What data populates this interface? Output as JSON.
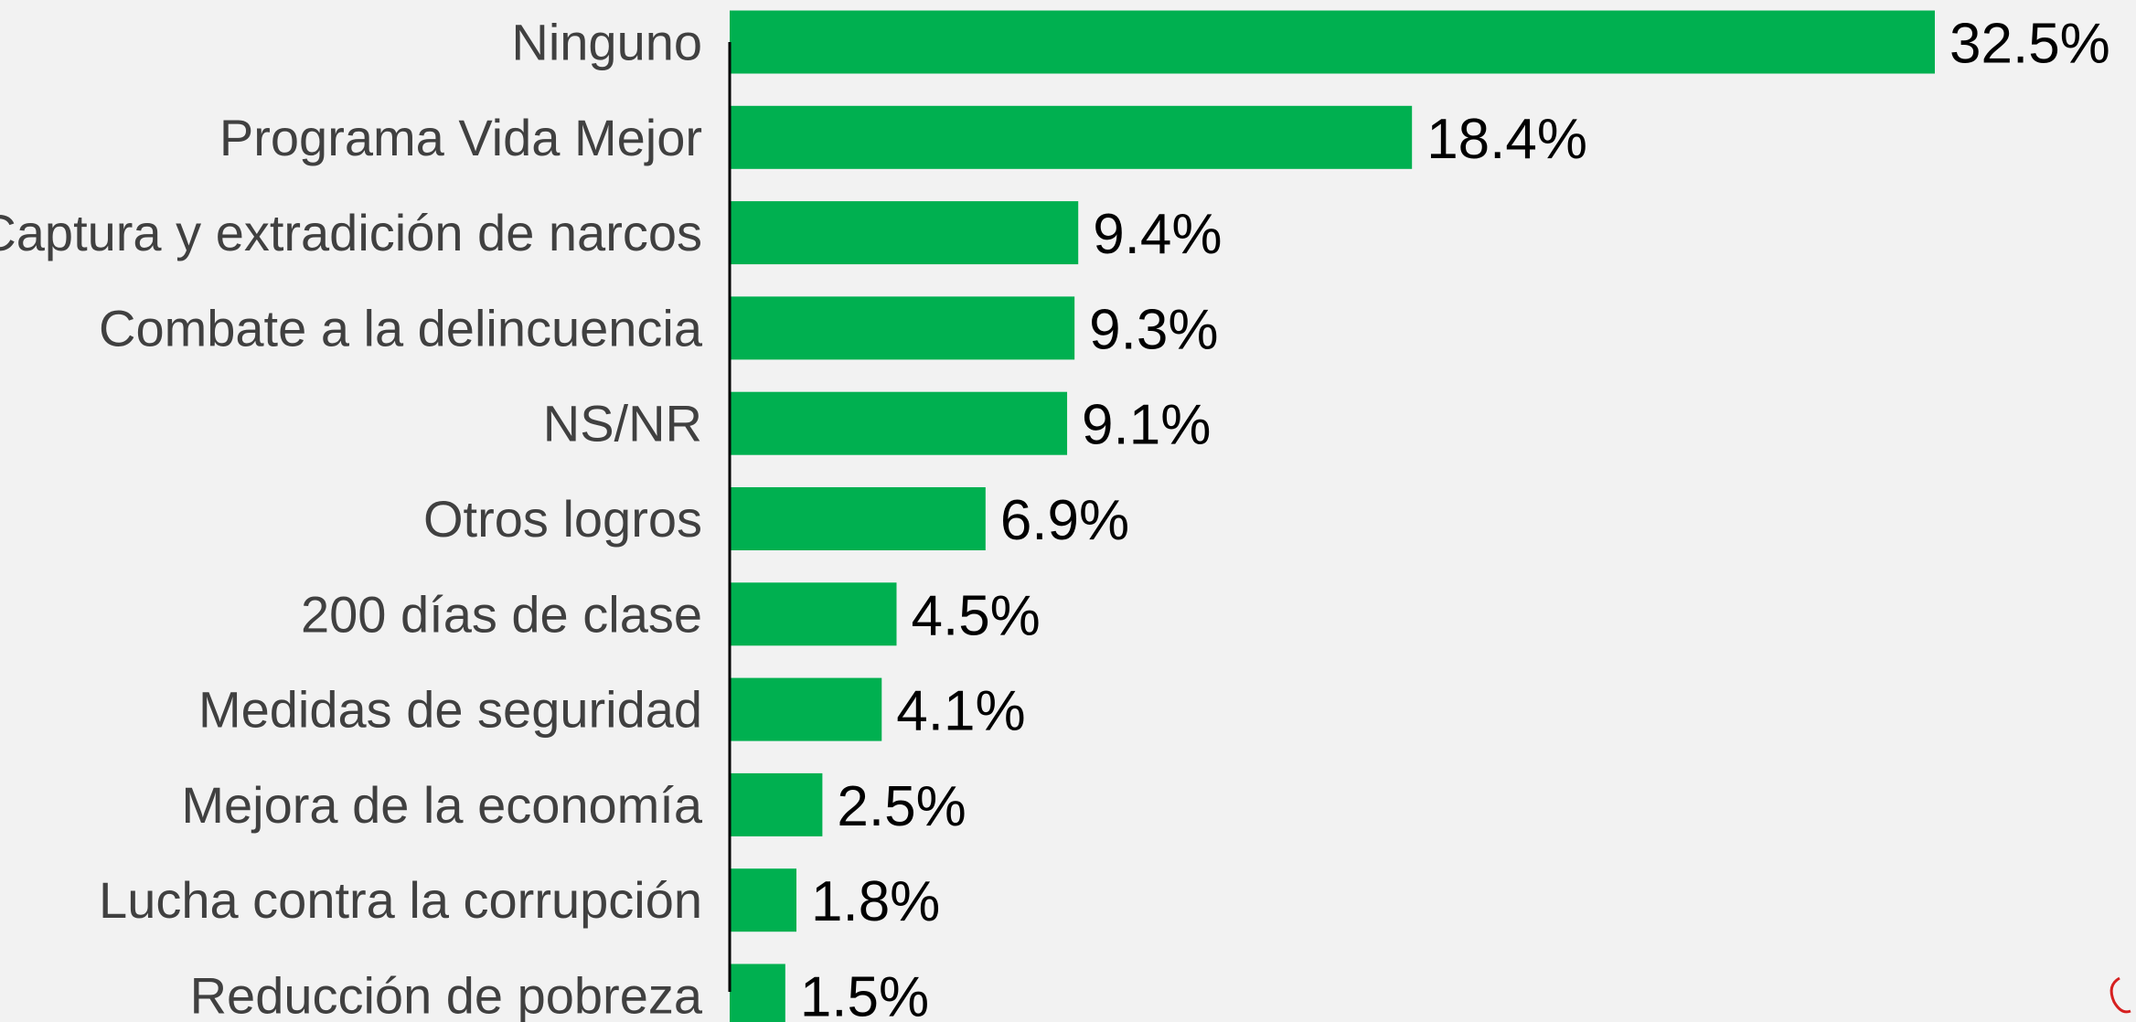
{
  "chart_data": {
    "type": "bar",
    "orientation": "horizontal",
    "categories": [
      "Ninguno",
      "Programa Vida Mejor",
      "Captura y extradición de narcos",
      "Combate a la delincuencia",
      "NS/NR",
      "Otros logros",
      "200 días de clase",
      "Medidas de seguridad",
      "Mejora de la economía",
      "Lucha contra la corrupción",
      "Reducción de pobreza"
    ],
    "values": [
      32.5,
      18.4,
      9.4,
      9.3,
      9.1,
      6.9,
      4.5,
      4.1,
      2.5,
      1.8,
      1.5
    ],
    "value_labels": [
      "32.5%",
      "18.4%",
      "9.4%",
      "9.3%",
      "9.1%",
      "6.9%",
      "4.5%",
      "4.1%",
      "2.5%",
      "1.8%",
      "1.5%"
    ],
    "color": "#00b050"
  }
}
